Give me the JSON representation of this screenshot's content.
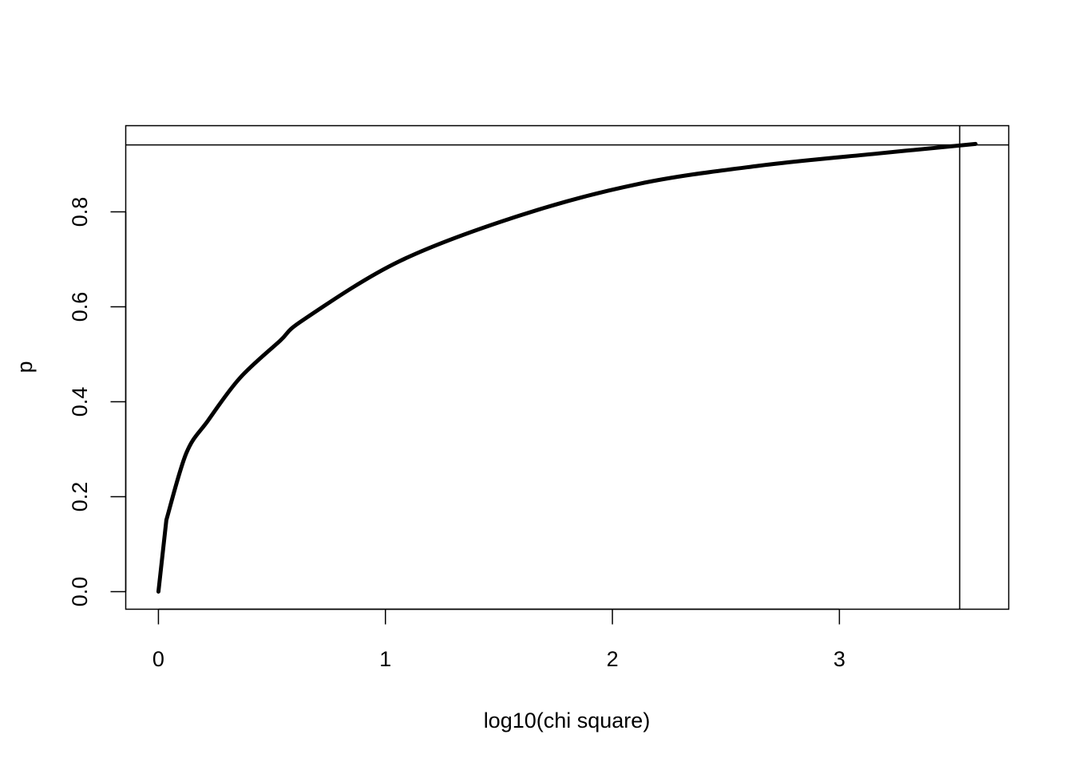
{
  "chart_data": {
    "type": "line",
    "title": "",
    "xlabel": "log10(chi square)",
    "ylabel": "p",
    "xlim": [
      -0.144,
      3.746
    ],
    "ylim": [
      -0.037,
      0.9815
    ],
    "xticks": [
      0,
      1,
      2,
      3
    ],
    "xtick_labels": [
      "0",
      "1",
      "2",
      "3"
    ],
    "yticks": [
      0,
      0.2,
      0.4,
      0.6,
      0.8
    ],
    "ytick_labels": [
      "0.0",
      "0.2",
      "0.4",
      "0.6",
      "0.8"
    ],
    "grid": false,
    "series": [
      {
        "color": "#000000",
        "x": [
          0,
          0.035,
          0.123,
          0.218,
          0.359,
          0.535,
          0.64,
          1.062,
          1.59,
          2.117,
          2.645,
          3.172,
          3.6
        ],
        "y": [
          0,
          0.151,
          0.292,
          0.36,
          0.45,
          0.528,
          0.573,
          0.696,
          0.792,
          0.859,
          0.897,
          0.923,
          0.943
        ]
      }
    ],
    "reference_lines": {
      "vertical_x": 3.53,
      "horizontal_y": 0.941
    }
  }
}
